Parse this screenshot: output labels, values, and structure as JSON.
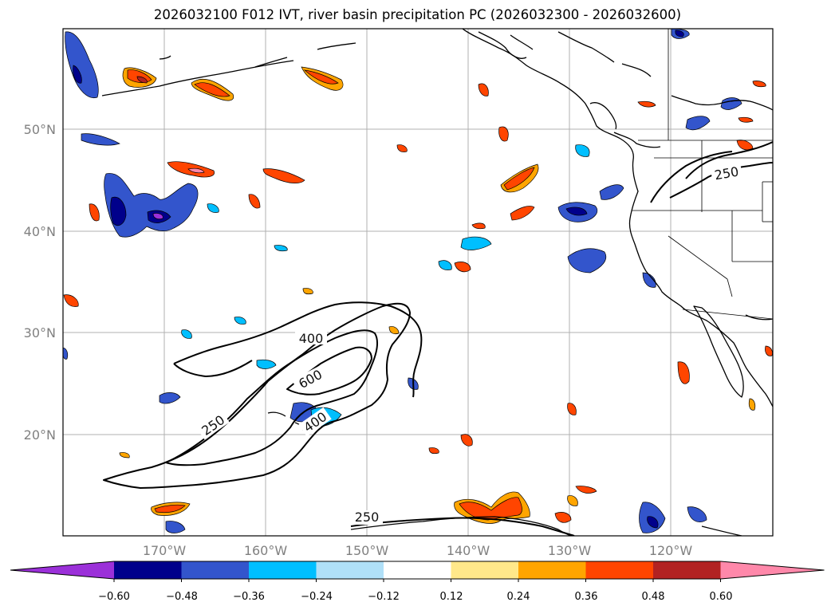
{
  "title": "2026032100 F012 IVT, river basin precipitation PC (2026032300 - 2026032600)",
  "latitude_labels": [
    "50°N",
    "40°N",
    "30°N",
    "20°N"
  ],
  "longitude_labels": [
    "170°W",
    "160°W",
    "150°W",
    "140°W",
    "130°W",
    "120°W"
  ],
  "ivt_contour_labels": [
    "250",
    "400",
    "600",
    "400",
    "250",
    "250"
  ],
  "colorbar": {
    "ticks": [
      "−0.60",
      "−0.48",
      "−0.36",
      "−0.24",
      "−0.12",
      "0.12",
      "0.24",
      "0.36",
      "0.48",
      "0.60"
    ],
    "colors": [
      "#9b30d9",
      "#00008b",
      "#3355cc",
      "#00bfff",
      "#b0e0f8",
      "#ffffff",
      "#ffe88a",
      "#ffa500",
      "#ff4500",
      "#b22222",
      "#ff88aa"
    ]
  }
}
